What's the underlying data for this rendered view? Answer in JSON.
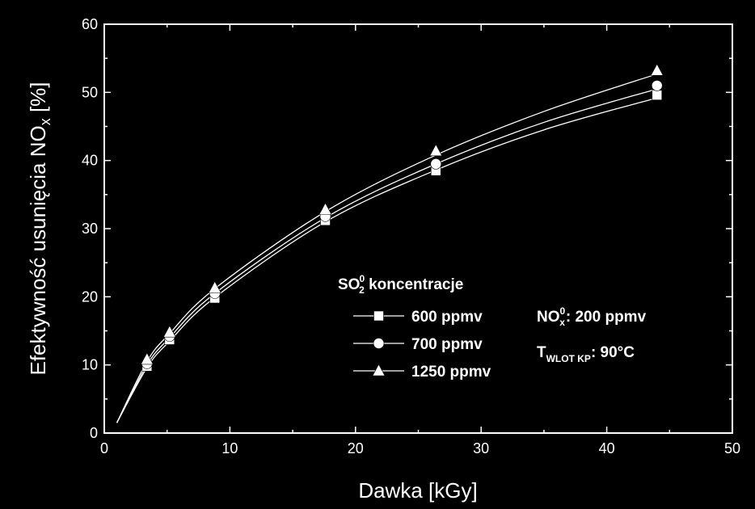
{
  "chart_data": {
    "type": "scatter",
    "xlabel": "Dawka [kGy]",
    "ylabel": "Efektywność usunięcia NO",
    "ylabel_sub": "x",
    "ylabel_tail": " [%]",
    "xlim": [
      0,
      50
    ],
    "ylim": [
      0,
      60
    ],
    "x_ticks": [
      "0",
      "10",
      "20",
      "30",
      "40",
      "50"
    ],
    "y_ticks": [
      "0",
      "10",
      "20",
      "30",
      "40",
      "50",
      "60"
    ],
    "grid": false,
    "legend_position": "center-right",
    "legend_title": "SO",
    "legend_title_sub": "2",
    "legend_title_sup": "0",
    "legend_title_tail": " koncentracje",
    "x": [
      3.4,
      5.2,
      8.8,
      17.6,
      26.4,
      44
    ],
    "series": [
      {
        "name": "600 ppmv",
        "marker": "square",
        "values": [
          9.8,
          13.7,
          19.8,
          31.2,
          38.5,
          49.6
        ]
      },
      {
        "name": "700 ppmv",
        "marker": "circle",
        "values": [
          10.2,
          14.2,
          20.5,
          31.8,
          39.5,
          51
        ]
      },
      {
        "name": "1250 ppmv",
        "marker": "triangle",
        "values": [
          10.8,
          14.8,
          21.3,
          32.8,
          41.4,
          53.2
        ]
      }
    ],
    "fit_curves": [
      {
        "series": "600 ppmv",
        "x": [
          1,
          3.4,
          5.2,
          8.8,
          17.6,
          26.4,
          35,
          44
        ],
        "y": [
          1.5,
          9.6,
          13.5,
          19.9,
          31.0,
          38.6,
          44.5,
          49.2
        ]
      },
      {
        "series": "700 ppmv",
        "x": [
          1,
          3.4,
          5.2,
          8.8,
          17.6,
          26.4,
          35,
          44
        ],
        "y": [
          1.5,
          10.0,
          14.0,
          20.5,
          31.6,
          39.5,
          45.6,
          50.5
        ]
      },
      {
        "series": "1250 ppmv",
        "x": [
          1,
          3.4,
          5.2,
          8.8,
          17.6,
          26.4,
          35,
          44
        ],
        "y": [
          1.5,
          10.5,
          14.6,
          21.2,
          32.5,
          40.8,
          47.2,
          52.7
        ]
      }
    ],
    "annotations": [
      {
        "id": "nox",
        "text": "NO",
        "sub": "x",
        "sup": "0",
        "tail": ": 200 ppmv"
      },
      {
        "id": "temp",
        "text": "T",
        "sub": "WLOT KP",
        "tail": ": 90°C"
      }
    ]
  }
}
